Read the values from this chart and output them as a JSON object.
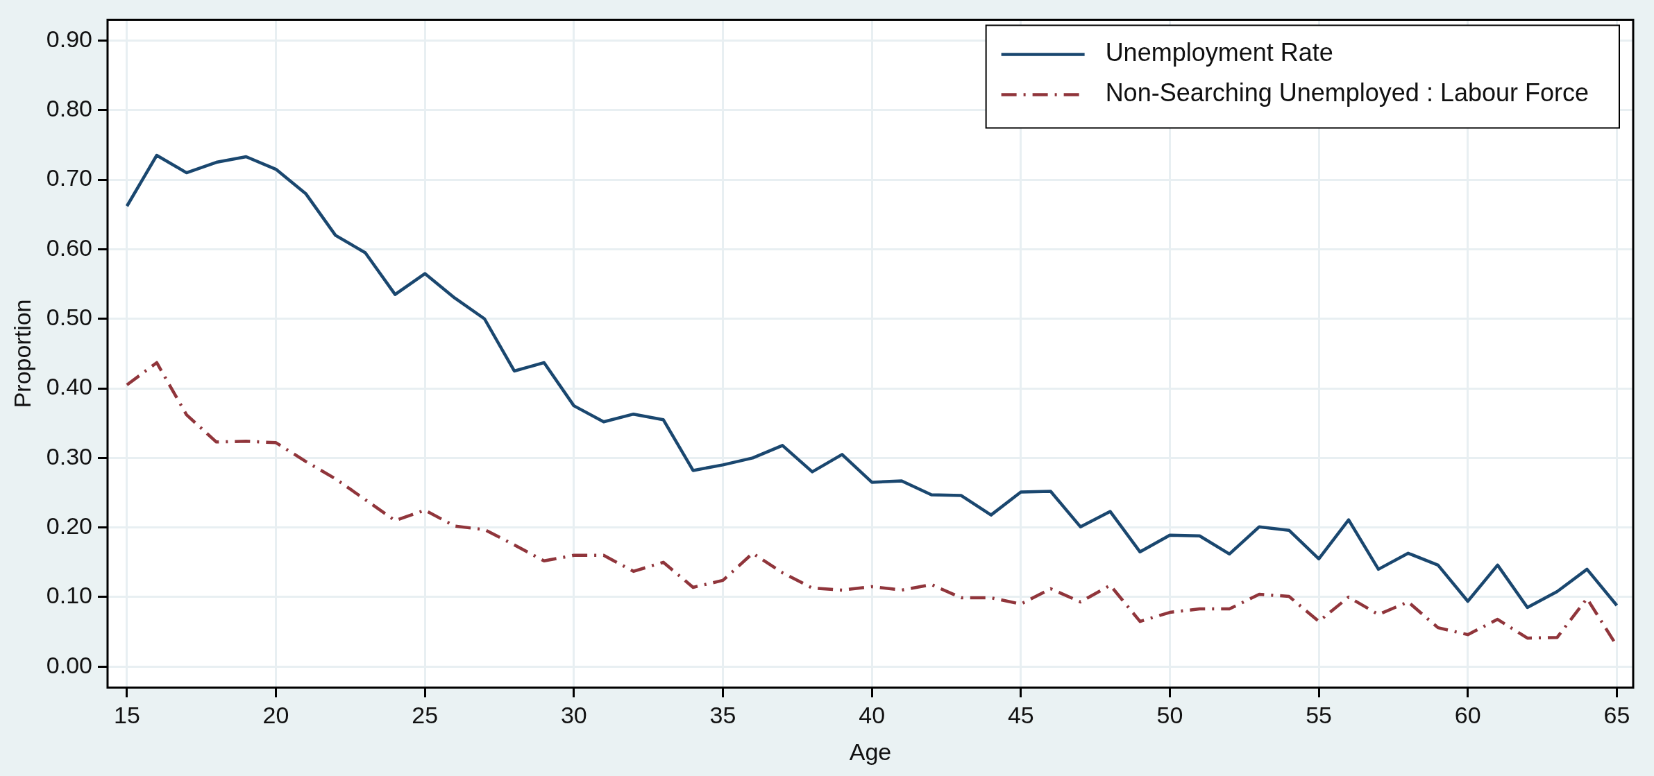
{
  "chart_data": {
    "type": "line",
    "xlabel": "Age",
    "ylabel": "Proportion",
    "x": [
      15,
      16,
      17,
      18,
      19,
      20,
      21,
      22,
      23,
      24,
      25,
      26,
      27,
      28,
      29,
      30,
      31,
      32,
      33,
      34,
      35,
      36,
      37,
      38,
      39,
      40,
      41,
      42,
      43,
      44,
      45,
      46,
      47,
      48,
      49,
      50,
      51,
      52,
      53,
      54,
      55,
      56,
      57,
      58,
      59,
      60,
      61,
      62,
      63,
      64,
      65
    ],
    "series": [
      {
        "name": "Unemployment Rate",
        "color": "#1a476f",
        "line_style": "solid",
        "values": [
          0.662,
          0.735,
          0.71,
          0.725,
          0.733,
          0.715,
          0.68,
          0.62,
          0.595,
          0.535,
          0.565,
          0.53,
          0.5,
          0.425,
          0.437,
          0.375,
          0.352,
          0.363,
          0.355,
          0.282,
          0.29,
          0.3,
          0.318,
          0.28,
          0.305,
          0.265,
          0.267,
          0.247,
          0.246,
          0.218,
          0.251,
          0.252,
          0.201,
          0.223,
          0.165,
          0.189,
          0.188,
          0.162,
          0.201,
          0.196,
          0.155,
          0.211,
          0.14,
          0.163,
          0.146,
          0.094,
          0.146,
          0.085,
          0.108,
          0.14,
          0.088
        ]
      },
      {
        "name": "Non-Searching Unemployed : Labour Force",
        "color": "#90353b",
        "line_style": "dashdot",
        "values": [
          0.405,
          0.437,
          0.362,
          0.323,
          0.324,
          0.322,
          0.295,
          0.27,
          0.24,
          0.21,
          0.225,
          0.202,
          0.197,
          0.175,
          0.152,
          0.16,
          0.16,
          0.137,
          0.15,
          0.114,
          0.124,
          0.163,
          0.135,
          0.113,
          0.11,
          0.115,
          0.11,
          0.118,
          0.099,
          0.099,
          0.09,
          0.112,
          0.093,
          0.117,
          0.065,
          0.078,
          0.083,
          0.083,
          0.104,
          0.101,
          0.065,
          0.1,
          0.075,
          0.093,
          0.056,
          0.046,
          0.068,
          0.041,
          0.042,
          0.098,
          0.03
        ]
      }
    ],
    "xlim": [
      14.35,
      65.55
    ],
    "xticks": [
      15,
      20,
      25,
      30,
      35,
      40,
      45,
      50,
      55,
      60,
      65
    ],
    "ylim": [
      -0.03,
      0.93
    ],
    "yticks": [
      {
        "value": 0,
        "label": "0.00"
      },
      {
        "value": 0.1,
        "label": "0.10"
      },
      {
        "value": 0.2,
        "label": "0.20"
      },
      {
        "value": 0.3,
        "label": "0.30"
      },
      {
        "value": 0.4,
        "label": "0.40"
      },
      {
        "value": 0.5,
        "label": "0.50"
      },
      {
        "value": 0.6,
        "label": "0.60"
      },
      {
        "value": 0.7,
        "label": "0.70"
      },
      {
        "value": 0.8,
        "label": "0.80"
      },
      {
        "value": 0.9,
        "label": "0.90"
      }
    ],
    "grid": true,
    "legend": "top right",
    "marker": "none"
  }
}
